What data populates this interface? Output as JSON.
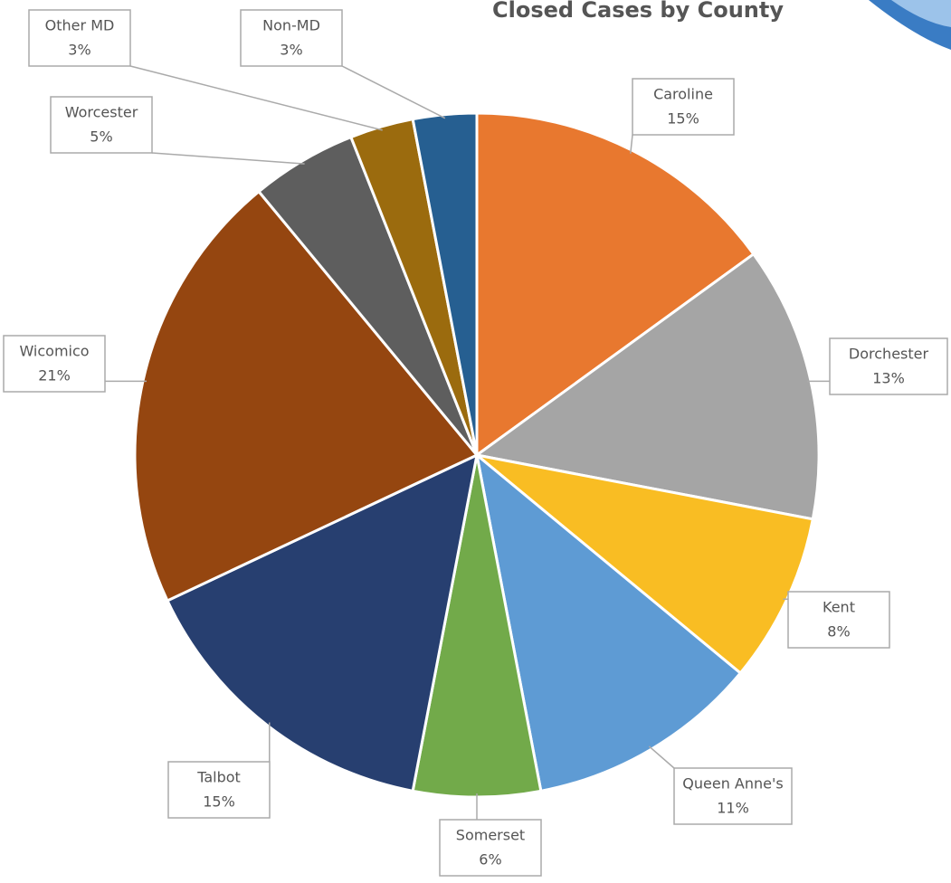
{
  "chart_data": {
    "type": "pie",
    "title": "Closed Cases by County",
    "categories": [
      "Caroline",
      "Dorchester",
      "Kent",
      "Queen Anne's",
      "Somerset",
      "Talbot",
      "Wicomico",
      "Worcester",
      "Other MD",
      "Non-MD"
    ],
    "values": [
      15,
      13,
      8,
      11,
      6,
      15,
      21,
      5,
      3,
      3
    ],
    "value_labels": [
      "15%",
      "13%",
      "8%",
      "11%",
      "6%",
      "15%",
      "21%",
      "5%",
      "3%",
      "3%"
    ],
    "colors": [
      "#e8782f",
      "#a5a5a5",
      "#f9bd23",
      "#5e9bd4",
      "#72aa4a",
      "#273f70",
      "#954610",
      "#5e5e5e",
      "#9b6b0e",
      "#265f91"
    ]
  }
}
